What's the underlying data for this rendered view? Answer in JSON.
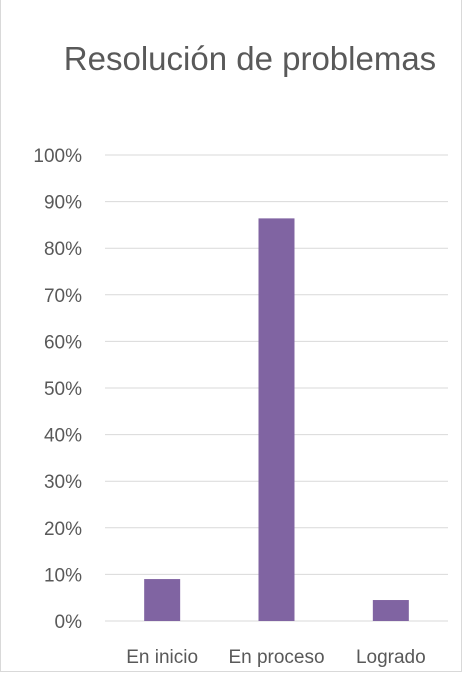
{
  "chart_data": {
    "type": "bar",
    "title": "Resolución de problemas",
    "categories": [
      "En inicio",
      "En proceso",
      "Logrado"
    ],
    "values": [
      9,
      86.4,
      4.5
    ],
    "ylim": [
      0,
      100
    ],
    "yticks": [
      "0%",
      "10%",
      "20%",
      "30%",
      "40%",
      "50%",
      "60%",
      "70%",
      "80%",
      "90%",
      "100%"
    ],
    "grid": true,
    "legend": "none",
    "bar_color": "#8064a2",
    "gridline_color": "#d9d9d9"
  }
}
